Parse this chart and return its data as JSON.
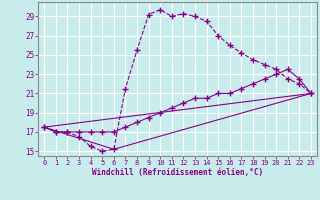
{
  "xlabel": "Windchill (Refroidissement éolien,°C)",
  "bg_color": "#c8ecec",
  "line_color": "#880088",
  "grid_color": "#aadddd",
  "xlim": [
    -0.5,
    23.5
  ],
  "ylim": [
    14.5,
    30.5
  ],
  "yticks": [
    15,
    17,
    19,
    21,
    23,
    25,
    27,
    29
  ],
  "xticks": [
    0,
    1,
    2,
    3,
    4,
    5,
    6,
    7,
    8,
    9,
    10,
    11,
    12,
    13,
    14,
    15,
    16,
    17,
    18,
    19,
    20,
    21,
    22,
    23
  ],
  "curve1_x": [
    0,
    1,
    2,
    3,
    4,
    5,
    6,
    7,
    8,
    9,
    10,
    11,
    12,
    13,
    14,
    15,
    16,
    17,
    18,
    19,
    20,
    21,
    22,
    23
  ],
  "curve1_y": [
    17.5,
    17.0,
    17.0,
    16.5,
    15.5,
    15.0,
    15.2,
    21.5,
    25.5,
    29.2,
    29.7,
    29.0,
    29.3,
    29.0,
    28.5,
    27.0,
    26.0,
    25.2,
    24.5,
    24.0,
    23.5,
    22.5,
    22.0,
    21.0
  ],
  "curve2_x": [
    0,
    1,
    2,
    3,
    4,
    5,
    6,
    7,
    8,
    9,
    10,
    11,
    12,
    13,
    14,
    15,
    16,
    17,
    18,
    19,
    20,
    21,
    22,
    23
  ],
  "curve2_y": [
    17.5,
    17.0,
    17.0,
    17.0,
    17.0,
    17.0,
    17.0,
    17.5,
    18.0,
    18.5,
    19.0,
    19.5,
    20.0,
    20.5,
    20.5,
    21.0,
    21.0,
    21.5,
    22.0,
    22.5,
    23.0,
    23.5,
    22.5,
    21.0
  ],
  "line3_x": [
    0,
    6,
    23
  ],
  "line3_y": [
    17.5,
    15.2,
    21.0
  ],
  "line4_x": [
    0,
    23
  ],
  "line4_y": [
    17.5,
    21.0
  ]
}
